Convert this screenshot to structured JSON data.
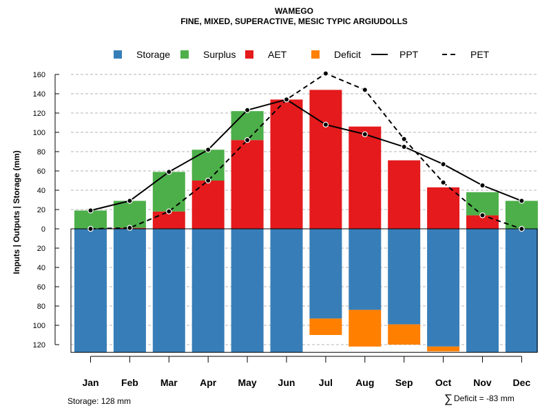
{
  "chart_data": {
    "type": "bar",
    "title": "WAMEGO",
    "subtitle": "FINE, MIXED, SUPERACTIVE, MESIC TYPIC ARGIUDOLLS",
    "ylabel": "Inputs | Outputs | Storage    (mm)",
    "ylim": [
      -128,
      165
    ],
    "yticks": [
      160,
      140,
      120,
      100,
      80,
      60,
      40,
      20,
      0,
      -20,
      -40,
      -60,
      -80,
      -100,
      -120
    ],
    "ytick_labels": [
      "160",
      "140",
      "120",
      "100",
      "80",
      "60",
      "40",
      "20",
      "0",
      "20",
      "40",
      "60",
      "80",
      "100",
      "120"
    ],
    "categories": [
      "Jan",
      "Feb",
      "Mar",
      "Apr",
      "May",
      "Jun",
      "Jul",
      "Aug",
      "Sep",
      "Oct",
      "Nov",
      "Dec"
    ],
    "legend": [
      {
        "label": "Storage",
        "kind": "square",
        "color": "#377EB8"
      },
      {
        "label": "Surplus",
        "kind": "square",
        "color": "#4DAF4A"
      },
      {
        "label": "AET",
        "kind": "square",
        "color": "#E41A1C"
      },
      {
        "label": "Deficit",
        "kind": "square",
        "color": "#FF7F00"
      },
      {
        "label": "PPT",
        "kind": "solid-line",
        "color": "#000000"
      },
      {
        "label": "PET",
        "kind": "dashed-line",
        "color": "#000000"
      }
    ],
    "series": [
      {
        "name": "AET",
        "color": "#E41A1C",
        "values": [
          0,
          1,
          18,
          50,
          92,
          134,
          144,
          106,
          71,
          43,
          14,
          0
        ]
      },
      {
        "name": "Surplus",
        "color": "#4DAF4A",
        "values": [
          19,
          28,
          41,
          32,
          30,
          0,
          0,
          0,
          0,
          0,
          24,
          29
        ]
      },
      {
        "name": "Storage",
        "color": "#377EB8",
        "values": [
          128,
          128,
          128,
          128,
          128,
          128,
          93,
          84,
          99,
          122,
          128,
          128
        ]
      },
      {
        "name": "Deficit",
        "color": "#FF7F00",
        "values": [
          0,
          0,
          0,
          0,
          0,
          0,
          17,
          38,
          21,
          5,
          0,
          0
        ]
      },
      {
        "name": "PPT",
        "color": "#000000",
        "values": [
          19,
          29,
          59,
          82,
          123,
          134,
          108,
          98,
          85,
          67,
          45,
          29
        ]
      },
      {
        "name": "PET",
        "color": "#000000",
        "values": [
          0,
          1,
          18,
          50,
          92,
          134,
          161,
          144,
          93,
          48,
          14,
          0
        ]
      }
    ],
    "storage_capacity": 128,
    "grid": true,
    "legend_position": "top"
  },
  "notes": {
    "storage": "Storage: 128 mm",
    "deficit_symbol": "∑",
    "deficit": "Deficit = -83 mm"
  }
}
